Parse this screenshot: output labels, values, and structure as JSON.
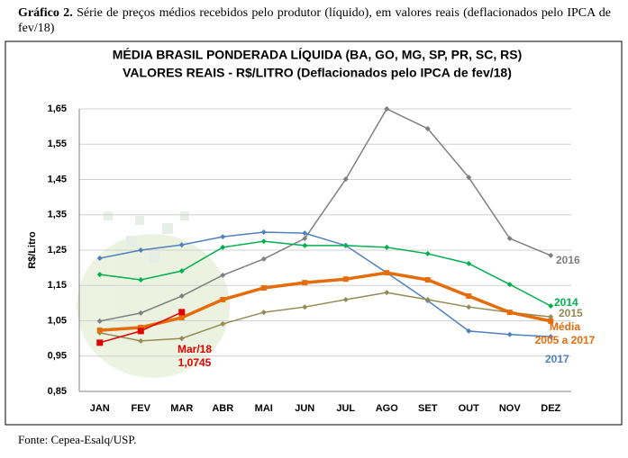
{
  "caption_label": "Gráfico 2.",
  "caption": "Série de preços médios recebidos pelo produtor (líquido), em valores reais (deflacionados pelo IPCA de fev/18)",
  "source": "Fonte: Cepea-Esalq/USP.",
  "chart_data": {
    "type": "line",
    "title": "MÉDIA BRASIL PONDERADA LÍQUIDA (BA, GO, MG, SP, PR, SC, RS)",
    "subtitle": "VALORES REAIS - R$/LITRO (Deflacionados pelo IPCA de fev/18)",
    "y_label": "R$/Litro",
    "categories": [
      "JAN",
      "FEV",
      "MAR",
      "ABR",
      "MAI",
      "JUN",
      "JUL",
      "AGO",
      "SET",
      "OUT",
      "NOV",
      "DEZ"
    ],
    "ylim": [
      0.85,
      1.65
    ],
    "yticks": [
      {
        "value": 0.85,
        "label": "0,85"
      },
      {
        "value": 0.95,
        "label": "0,95"
      },
      {
        "value": 1.05,
        "label": "1,05"
      },
      {
        "value": 1.15,
        "label": "1,15"
      },
      {
        "value": 1.25,
        "label": "1,25"
      },
      {
        "value": 1.35,
        "label": "1,35"
      },
      {
        "value": 1.45,
        "label": "1,45"
      },
      {
        "value": 1.55,
        "label": "1,55"
      },
      {
        "value": 1.65,
        "label": "1,65"
      }
    ],
    "grid": true,
    "series": [
      {
        "name": "2016",
        "color": "#7f7f7f",
        "values": [
          1.049,
          1.072,
          1.12,
          1.179,
          1.225,
          1.283,
          1.451,
          1.65,
          1.594,
          1.456,
          1.283,
          1.235
        ]
      },
      {
        "name": "2017",
        "color": "#4f81bd",
        "values": [
          1.227,
          1.25,
          1.265,
          1.288,
          1.301,
          1.298,
          1.263,
          1.186,
          1.107,
          1.021,
          1.011,
          1.005
        ]
      },
      {
        "name": "2014",
        "color": "#00b050",
        "values": [
          1.181,
          1.166,
          1.191,
          1.258,
          1.275,
          1.263,
          1.263,
          1.258,
          1.24,
          1.212,
          1.153,
          1.092
        ]
      },
      {
        "name": "2015",
        "color": "#948a54",
        "values": [
          1.016,
          0.993,
          1.0,
          1.041,
          1.074,
          1.089,
          1.11,
          1.13,
          1.11,
          1.089,
          1.074,
          1.061
        ]
      },
      {
        "name": "Média\n2005 a 2017",
        "color": "#e46c0a",
        "values": [
          1.023,
          1.031,
          1.059,
          1.11,
          1.143,
          1.158,
          1.168,
          1.186,
          1.166,
          1.12,
          1.074,
          1.049
        ]
      },
      {
        "color": "#e00000",
        "values": [
          0.988,
          1.021,
          1.0745,
          null,
          null,
          null,
          null,
          null,
          null,
          null,
          null,
          null
        ]
      }
    ],
    "annotations": [
      "Mar/18",
      "1,0745"
    ]
  }
}
